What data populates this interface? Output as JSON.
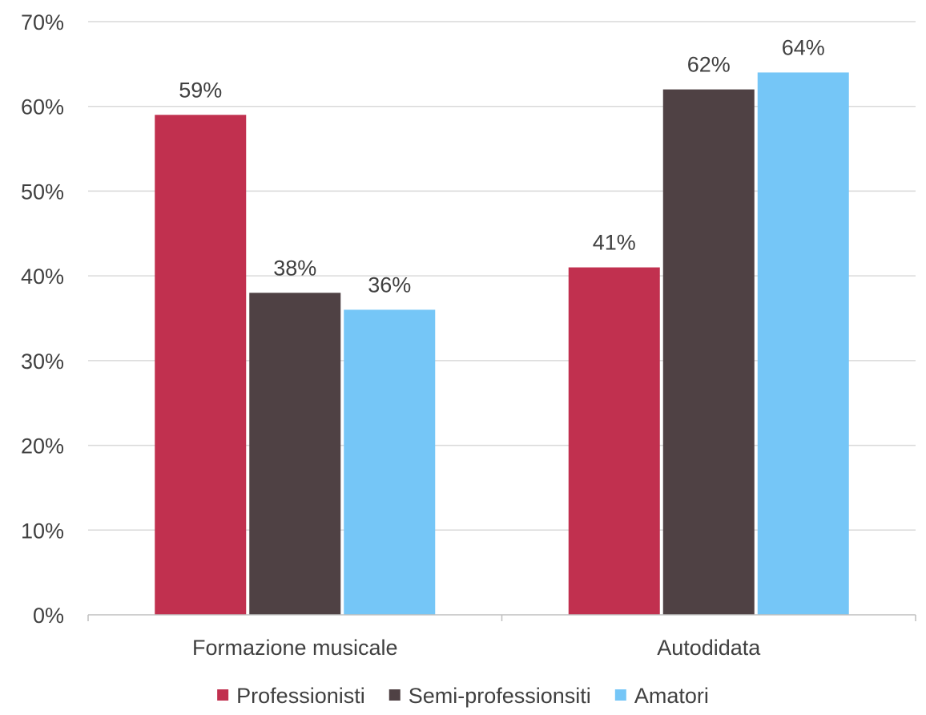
{
  "chart_data": {
    "type": "bar",
    "title": "",
    "xlabel": "",
    "ylabel": "",
    "categories": [
      "Formazione musicale",
      "Autodidata"
    ],
    "series": [
      {
        "name": "Professionisti",
        "values": [
          59,
          41
        ],
        "labels": [
          "59%",
          "41%"
        ],
        "color": "#C1304F"
      },
      {
        "name": "Semi-professionsiti",
        "values": [
          38,
          62
        ],
        "labels": [
          "38%",
          "62%"
        ],
        "color": "#4F4144"
      },
      {
        "name": "Amatori",
        "values": [
          36,
          64
        ],
        "labels": [
          "36%",
          "64%"
        ],
        "color": "#75C6F7"
      }
    ],
    "ylim": [
      0,
      70
    ],
    "yticks": [
      0,
      10,
      20,
      30,
      40,
      50,
      60,
      70
    ],
    "ytick_labels": [
      "0%",
      "10%",
      "20%",
      "30%",
      "40%",
      "50%",
      "60%",
      "70%"
    ],
    "grid": true,
    "legend_position": "bottom",
    "colors": {
      "grid": "#D9D9D9",
      "axis": "#BFBFBF",
      "text": "#404040"
    }
  }
}
